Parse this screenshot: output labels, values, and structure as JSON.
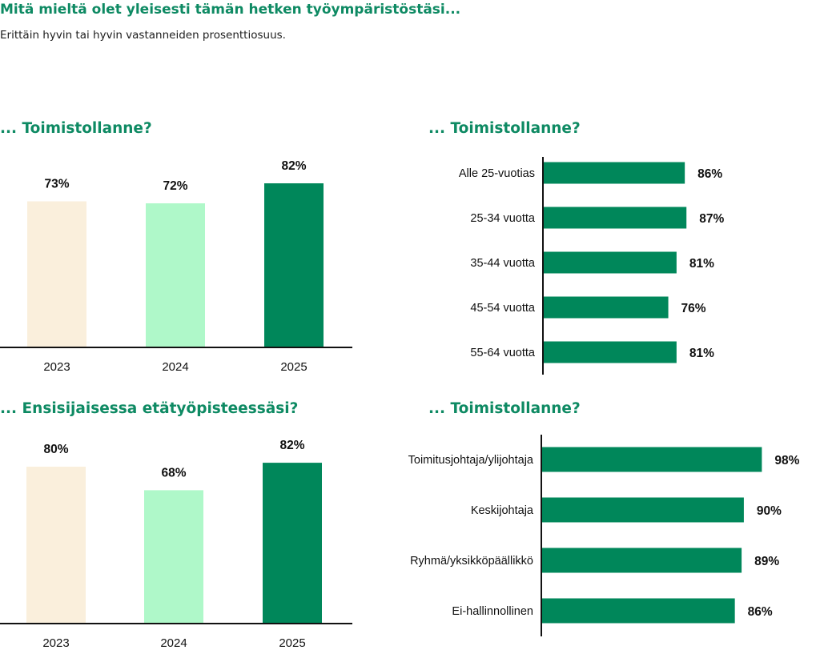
{
  "header": {
    "title": "Mitä mieltä olet yleisesti tämän hetken työympäristöstäsi...",
    "subtitle": "Erittäin hyvin tai hyvin vastanneiden prosenttiosuus."
  },
  "colors": {
    "title_green": "#0e8a63",
    "bar_cream": "#faefdc",
    "bar_mint": "#aff8c9",
    "bar_green": "#00875a",
    "axis": "#111111"
  },
  "chart_data": [
    {
      "type": "bar",
      "title": "... Toimistollanne?",
      "categories": [
        "2023",
        "2024",
        "2025"
      ],
      "values": [
        73,
        72,
        82
      ],
      "labels": [
        "73%",
        "72%",
        "82%"
      ],
      "bar_colors": [
        "#faefdc",
        "#aff8c9",
        "#00875a"
      ],
      "ylim": [
        0,
        100
      ],
      "orientation": "vertical",
      "grid": false
    },
    {
      "type": "bar",
      "title": "... Ensisijaisessa etätyöpisteessäsi?",
      "categories": [
        "2023",
        "2024",
        "2025"
      ],
      "values": [
        80,
        68,
        82
      ],
      "labels": [
        "80%",
        "68%",
        "82%"
      ],
      "bar_colors": [
        "#faefdc",
        "#aff8c9",
        "#00875a"
      ],
      "ylim": [
        0,
        100
      ],
      "orientation": "vertical",
      "grid": false
    },
    {
      "type": "bar",
      "title": "... Toimistollanne?",
      "categories": [
        "Alle 25-vuotias",
        "25-34 vuotta",
        "35-44 vuotta",
        "45-54 vuotta",
        "55-64 vuotta"
      ],
      "values": [
        86,
        87,
        81,
        76,
        81
      ],
      "labels": [
        "86%",
        "87%",
        "81%",
        "76%",
        "81%"
      ],
      "bar_colors": [
        "#00875a"
      ],
      "xlim": [
        0,
        100
      ],
      "orientation": "horizontal",
      "grid": false
    },
    {
      "type": "bar",
      "title": "... Toimistollanne?",
      "categories": [
        "Toimitusjohtaja/ylijohtaja",
        "Keskijohtaja",
        "Ryhmä/yksikköpäällikkö",
        "Ei-hallinnollinen"
      ],
      "values": [
        98,
        90,
        89,
        86
      ],
      "labels": [
        "98%",
        "90%",
        "89%",
        "86%"
      ],
      "bar_colors": [
        "#00875a"
      ],
      "xlim": [
        0,
        100
      ],
      "orientation": "horizontal",
      "grid": false
    }
  ]
}
